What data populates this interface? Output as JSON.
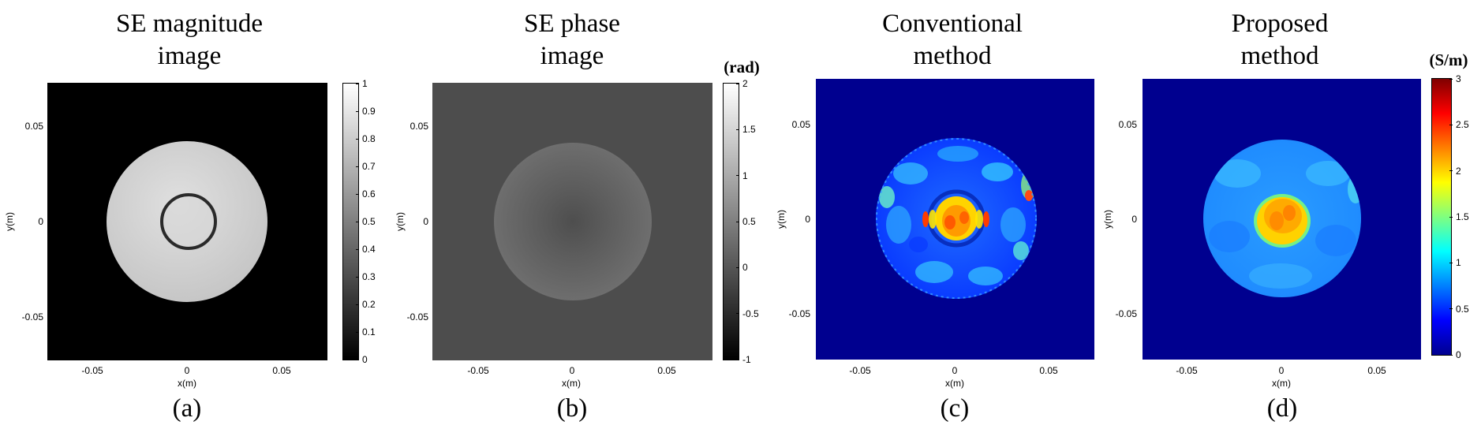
{
  "figure": {
    "panels": [
      {
        "id": "a",
        "title_lines": [
          "SE magnitude",
          "image"
        ],
        "caption": "(a)",
        "xlabel": "x(m)",
        "ylabel": "y(m)",
        "x_ticks": [
          "-0.05",
          "0",
          "0.05"
        ],
        "y_ticks": [
          "0.05",
          "0",
          "-0.05"
        ],
        "colormap": "gray",
        "colorbar_unit": "",
        "colorbar_ticks": [
          "1",
          "0.9",
          "0.8",
          "0.7",
          "0.6",
          "0.5",
          "0.4",
          "0.3",
          "0.2",
          "0.1",
          "0"
        ]
      },
      {
        "id": "b",
        "title_lines": [
          "SE phase",
          "image"
        ],
        "caption": "(b)",
        "xlabel": "x(m)",
        "ylabel": "y(m)",
        "x_ticks": [
          "-0.05",
          "0",
          "0.05"
        ],
        "y_ticks": [
          "0.05",
          "0",
          "-0.05"
        ],
        "colormap": "gray",
        "colorbar_unit": "(rad)",
        "colorbar_ticks": [
          "2",
          "1.5",
          "1",
          "0.5",
          "0",
          "-0.5",
          "-1"
        ]
      },
      {
        "id": "c",
        "title_lines": [
          "Conventional",
          "method"
        ],
        "caption": "(c)",
        "xlabel": "x(m)",
        "ylabel": "y(m)",
        "x_ticks": [
          "-0.05",
          "0",
          "0.05"
        ],
        "y_ticks": [
          "0.05",
          "0",
          "-0.05"
        ],
        "colormap": "jet",
        "colorbar_unit": "",
        "colorbar_ticks": []
      },
      {
        "id": "d",
        "title_lines": [
          "Proposed",
          "method"
        ],
        "caption": "(d)",
        "xlabel": "x(m)",
        "ylabel": "y(m)",
        "x_ticks": [
          "-0.05",
          "0",
          "0.05"
        ],
        "y_ticks": [
          "0.05",
          "0",
          "-0.05"
        ],
        "colormap": "jet",
        "colorbar_unit": "(S/m)",
        "colorbar_ticks": [
          "3",
          "2.5",
          "2",
          "1.5",
          "1",
          "0.5",
          "0"
        ]
      }
    ],
    "colors": {
      "background_black": "#000000",
      "phase_background": "#4d4d4d",
      "jet_background": "#00008f"
    }
  }
}
